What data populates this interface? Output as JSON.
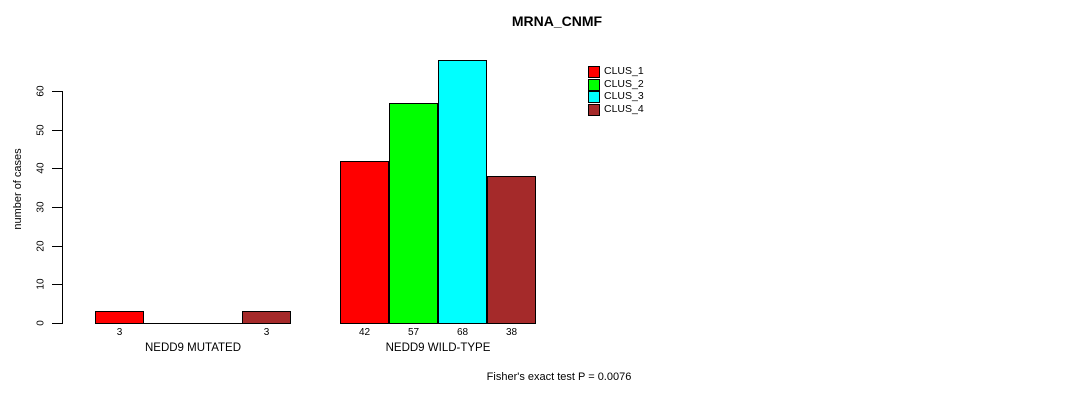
{
  "title": "MRNA_CNMF",
  "chart_data": {
    "type": "bar",
    "title": "MRNA_CNMF",
    "xlabel": "",
    "ylabel": "number of cases",
    "ylim": [
      0,
      60
    ],
    "yticks": [
      0,
      10,
      20,
      30,
      40,
      50,
      60
    ],
    "grid": false,
    "legend_position": "top-right",
    "series": [
      {
        "name": "CLUS_1",
        "color": "#ff0000"
      },
      {
        "name": "CLUS_2",
        "color": "#00ff00"
      },
      {
        "name": "CLUS_3",
        "color": "#00ffff"
      },
      {
        "name": "CLUS_4",
        "color": "#a52a2a"
      }
    ],
    "groups": [
      {
        "label": "NEDD9 MUTATED",
        "values": [
          3,
          0,
          0,
          3
        ],
        "bar_labels": [
          "3",
          "",
          "",
          "3"
        ]
      },
      {
        "label": "NEDD9 WILD-TYPE",
        "values": [
          42,
          57,
          68,
          38
        ],
        "bar_labels": [
          "42",
          "57",
          "68",
          "38"
        ]
      }
    ],
    "annotation": "Fisher's exact test P = 0.0076"
  }
}
